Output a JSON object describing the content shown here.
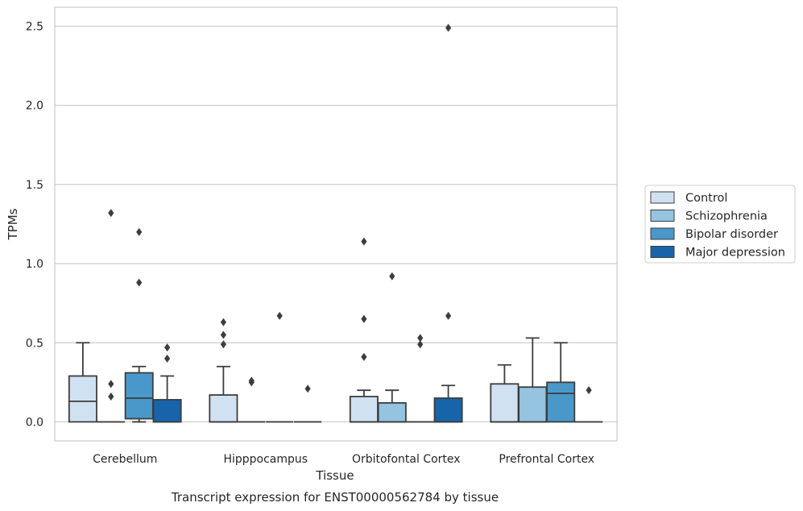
{
  "chart_data": {
    "type": "box",
    "title": "Transcript expression for ENST00000562784 by tissue",
    "xlabel": "Tissue",
    "ylabel": "TPMs",
    "ylim": [
      -0.12,
      2.62
    ],
    "yticks": [
      "0.0",
      "0.5",
      "1.0",
      "1.5",
      "2.0",
      "2.5"
    ],
    "ytick_values": [
      0.0,
      0.5,
      1.0,
      1.5,
      2.0,
      2.5
    ],
    "grid": true,
    "legend_position": "right",
    "categories": [
      "Cerebellum",
      "Hipppocampus",
      "Orbitofontal Cortex",
      "Prefrontal Cortex"
    ],
    "series": [
      {
        "name": "Control",
        "color": "#d0e1f2",
        "boxes": [
          {
            "q1": 0.0,
            "median": 0.13,
            "q3": 0.29,
            "whisker_low": 0.0,
            "whisker_high": 0.5,
            "outliers": []
          },
          {
            "q1": 0.0,
            "median": 0.0,
            "q3": 0.17,
            "whisker_low": 0.0,
            "whisker_high": 0.35,
            "outliers": [
              0.49,
              0.55,
              0.63
            ]
          },
          {
            "q1": 0.0,
            "median": 0.0,
            "q3": 0.16,
            "whisker_low": 0.0,
            "whisker_high": 0.2,
            "outliers": [
              0.41,
              0.65,
              1.14
            ]
          },
          {
            "q1": 0.0,
            "median": 0.0,
            "q3": 0.24,
            "whisker_low": 0.0,
            "whisker_high": 0.36,
            "outliers": []
          }
        ]
      },
      {
        "name": "Schizophrenia",
        "color": "#94c4df",
        "boxes": [
          {
            "q1": 0.0,
            "median": 0.0,
            "q3": 0.0,
            "whisker_low": 0.0,
            "whisker_high": 0.0,
            "outliers": [
              0.16,
              0.24,
              1.32
            ]
          },
          {
            "q1": 0.0,
            "median": 0.0,
            "q3": 0.0,
            "whisker_low": 0.0,
            "whisker_high": 0.0,
            "outliers": [
              0.25,
              0.26
            ]
          },
          {
            "q1": 0.0,
            "median": 0.0,
            "q3": 0.12,
            "whisker_low": 0.0,
            "whisker_high": 0.2,
            "outliers": [
              0.92
            ]
          },
          {
            "q1": 0.0,
            "median": 0.0,
            "q3": 0.22,
            "whisker_low": 0.0,
            "whisker_high": 0.53,
            "outliers": []
          }
        ]
      },
      {
        "name": "Bipolar disorder",
        "color": "#4a98c9",
        "boxes": [
          {
            "q1": 0.02,
            "median": 0.15,
            "q3": 0.31,
            "whisker_low": 0.0,
            "whisker_high": 0.35,
            "outliers": [
              0.88,
              1.2
            ]
          },
          {
            "q1": 0.0,
            "median": 0.0,
            "q3": 0.0,
            "whisker_low": 0.0,
            "whisker_high": 0.0,
            "outliers": [
              0.67
            ]
          },
          {
            "q1": 0.0,
            "median": 0.0,
            "q3": 0.0,
            "whisker_low": 0.0,
            "whisker_high": 0.0,
            "outliers": [
              0.49,
              0.53
            ]
          },
          {
            "q1": 0.0,
            "median": 0.18,
            "q3": 0.25,
            "whisker_low": 0.0,
            "whisker_high": 0.5,
            "outliers": []
          }
        ]
      },
      {
        "name": "Major depression",
        "color": "#1764ab",
        "boxes": [
          {
            "q1": 0.0,
            "median": 0.0,
            "q3": 0.14,
            "whisker_low": 0.0,
            "whisker_high": 0.29,
            "outliers": [
              0.4,
              0.47
            ]
          },
          {
            "q1": 0.0,
            "median": 0.0,
            "q3": 0.0,
            "whisker_low": 0.0,
            "whisker_high": 0.0,
            "outliers": [
              0.21
            ]
          },
          {
            "q1": 0.0,
            "median": 0.0,
            "q3": 0.15,
            "whisker_low": 0.0,
            "whisker_high": 0.23,
            "outliers": [
              0.67,
              2.49
            ]
          },
          {
            "q1": 0.0,
            "median": 0.0,
            "q3": 0.0,
            "whisker_low": 0.0,
            "whisker_high": 0.0,
            "outliers": [
              0.2
            ]
          }
        ]
      }
    ]
  }
}
